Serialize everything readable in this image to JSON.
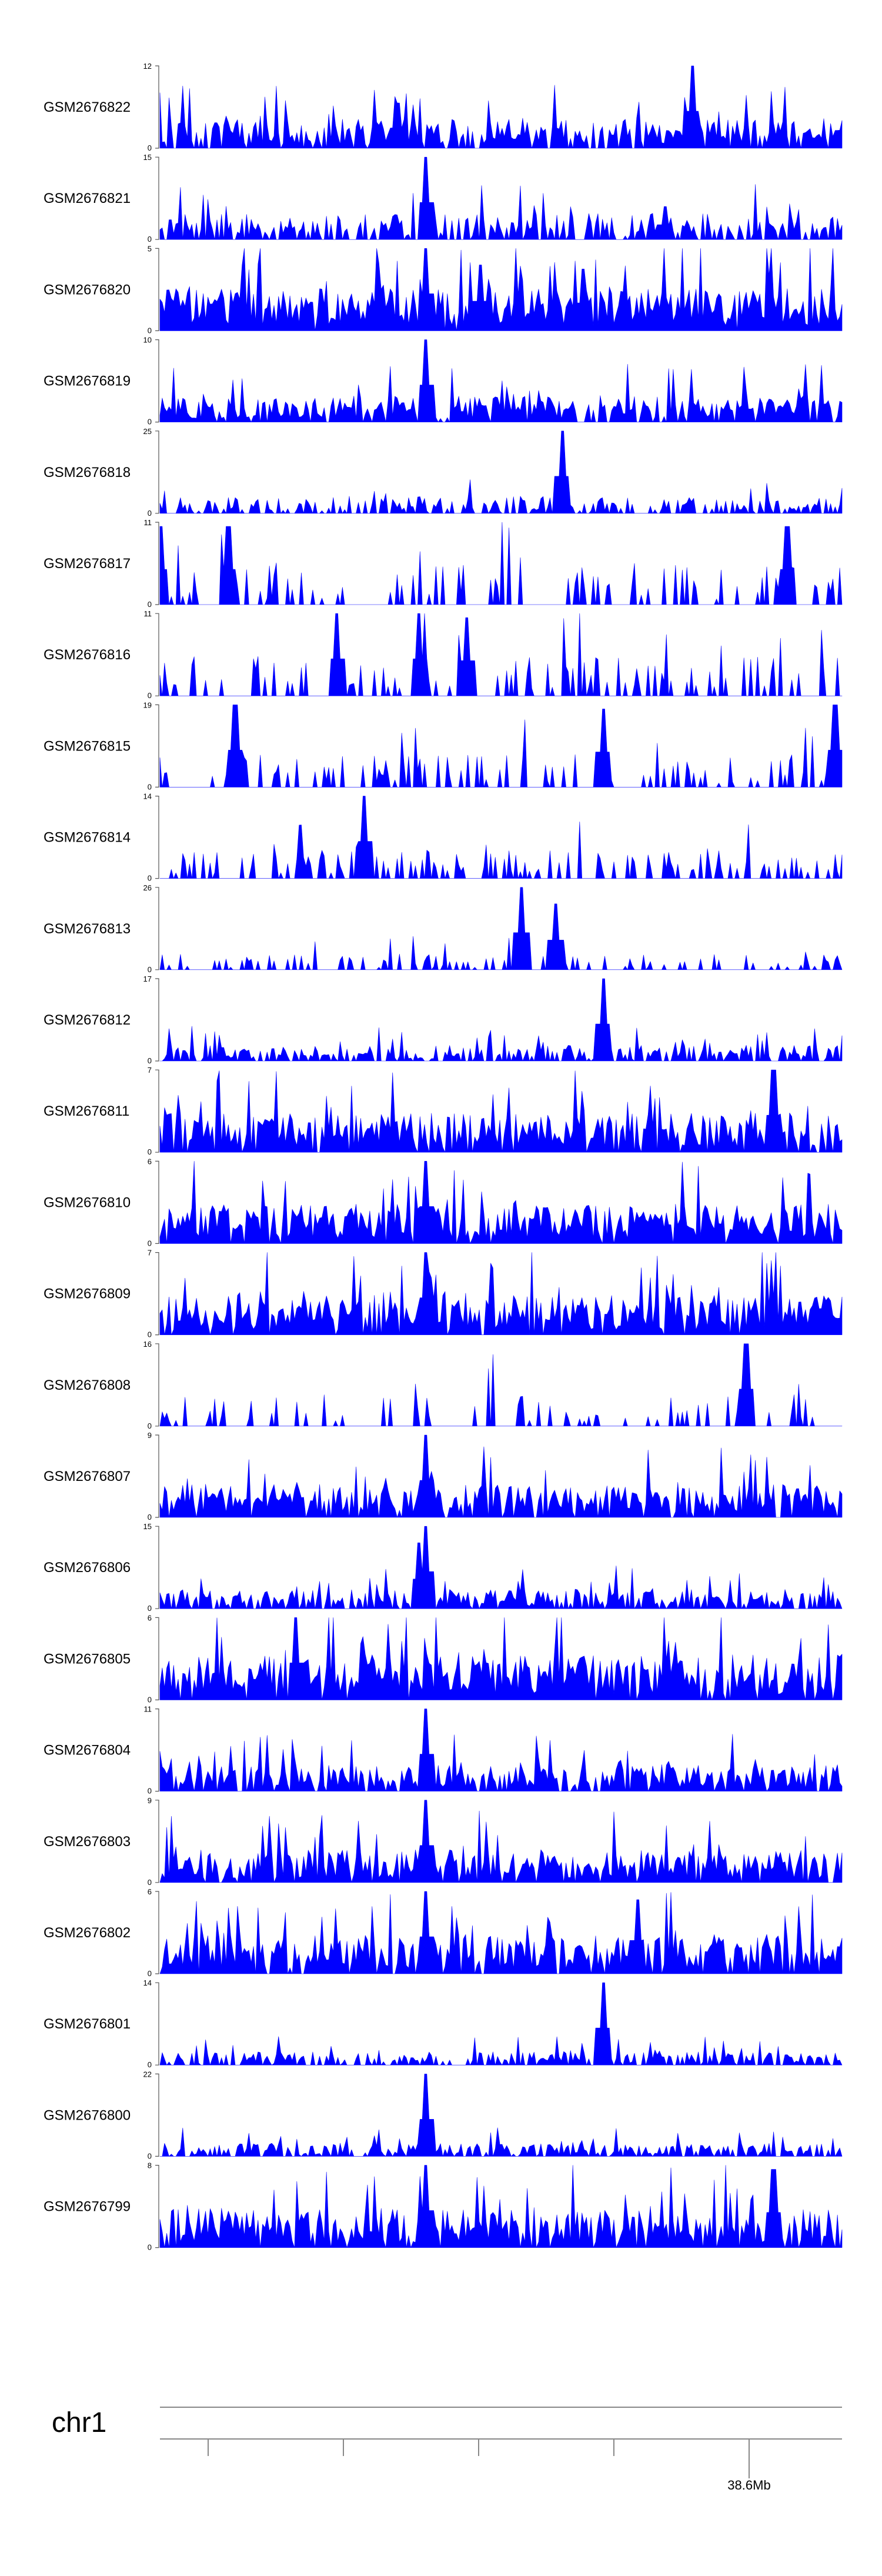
{
  "chart_data": {
    "type": "area",
    "color": "#0000ff",
    "chromosome": "chr1",
    "coordinate_label": "38.6Mb",
    "tracks": [
      {
        "name": "GSM2676822",
        "ymax": 12,
        "ymin": 0,
        "seed": 1,
        "sparsity": 0.15,
        "peakPos": [
          0.78,
          0.35
        ],
        "peakH": [
          1.0,
          0.55
        ],
        "base": 0.22
      },
      {
        "name": "GSM2676821",
        "ymax": 15,
        "ymin": 0,
        "seed": 2,
        "sparsity": 0.35,
        "peakPos": [
          0.39,
          0.74
        ],
        "peakH": [
          1.0,
          0.4
        ],
        "base": 0.2
      },
      {
        "name": "GSM2676820",
        "ymax": 5,
        "ymin": 0,
        "seed": 3,
        "sparsity": 0.05,
        "peakPos": [
          0.39,
          0.47,
          0.62
        ],
        "peakH": [
          1.0,
          0.8,
          0.75
        ],
        "base": 0.32
      },
      {
        "name": "GSM2676819",
        "ymax": 10,
        "ymin": 0,
        "seed": 4,
        "sparsity": 0.15,
        "peakPos": [
          0.39
        ],
        "peakH": [
          1.0
        ],
        "base": 0.2
      },
      {
        "name": "GSM2676818",
        "ymax": 25,
        "ymin": 0,
        "seed": 5,
        "sparsity": 0.45,
        "peakPos": [
          0.59
        ],
        "peakH": [
          1.0
        ],
        "base": 0.12
      },
      {
        "name": "GSM2676817",
        "ymax": 11,
        "ymin": 0,
        "seed": 6,
        "sparsity": 0.7,
        "peakPos": [
          0.0,
          0.1,
          0.92
        ],
        "peakH": [
          0.95,
          0.95,
          0.95
        ],
        "base": 0.3
      },
      {
        "name": "GSM2676816",
        "ymax": 11,
        "ymin": 0,
        "seed": 7,
        "sparsity": 0.7,
        "peakPos": [
          0.26,
          0.38,
          0.45
        ],
        "peakH": [
          1.0,
          1.0,
          0.95
        ],
        "base": 0.3
      },
      {
        "name": "GSM2676815",
        "ymax": 19,
        "ymin": 0,
        "seed": 8,
        "sparsity": 0.75,
        "peakPos": [
          0.11,
          0.65,
          0.99
        ],
        "peakH": [
          1.0,
          0.95,
          1.0
        ],
        "base": 0.25
      },
      {
        "name": "GSM2676814",
        "ymax": 14,
        "ymin": 0,
        "seed": 9,
        "sparsity": 0.65,
        "peakPos": [
          0.3
        ],
        "peakH": [
          1.0
        ],
        "base": 0.22
      },
      {
        "name": "GSM2676813",
        "ymax": 26,
        "ymin": 0,
        "seed": 10,
        "sparsity": 0.7,
        "peakPos": [
          0.53,
          0.58
        ],
        "peakH": [
          1.0,
          0.8
        ],
        "base": 0.12
      },
      {
        "name": "GSM2676812",
        "ymax": 17,
        "ymin": 0,
        "seed": 11,
        "sparsity": 0.35,
        "peakPos": [
          0.65
        ],
        "peakH": [
          1.0
        ],
        "base": 0.12
      },
      {
        "name": "GSM2676811",
        "ymax": 7,
        "ymin": 0,
        "seed": 12,
        "sparsity": 0.1,
        "peakPos": [
          0.9
        ],
        "peakH": [
          1.0
        ],
        "base": 0.3
      },
      {
        "name": "GSM2676810",
        "ymax": 6,
        "ymin": 0,
        "seed": 13,
        "sparsity": 0.1,
        "peakPos": [
          0.39
        ],
        "peakH": [
          1.0
        ],
        "base": 0.3
      },
      {
        "name": "GSM2676809",
        "ymax": 7,
        "ymin": 0,
        "seed": 14,
        "sparsity": 0.1,
        "peakPos": [
          0.39
        ],
        "peakH": [
          1.0
        ],
        "base": 0.3
      },
      {
        "name": "GSM2676808",
        "ymax": 16,
        "ymin": 0,
        "seed": 15,
        "sparsity": 0.75,
        "peakPos": [
          0.86
        ],
        "peakH": [
          1.0
        ],
        "base": 0.25
      },
      {
        "name": "GSM2676807",
        "ymax": 9,
        "ymin": 0,
        "seed": 16,
        "sparsity": 0.1,
        "peakPos": [
          0.39
        ],
        "peakH": [
          1.0
        ],
        "base": 0.25
      },
      {
        "name": "GSM2676806",
        "ymax": 15,
        "ymin": 0,
        "seed": 17,
        "sparsity": 0.25,
        "peakPos": [
          0.39,
          0.38
        ],
        "peakH": [
          1.0,
          0.8
        ],
        "base": 0.15
      },
      {
        "name": "GSM2676805",
        "ymax": 6,
        "ymin": 0,
        "seed": 18,
        "sparsity": 0.05,
        "peakPos": [
          0.2
        ],
        "peakH": [
          1.0
        ],
        "base": 0.35
      },
      {
        "name": "GSM2676804",
        "ymax": 11,
        "ymin": 0,
        "seed": 19,
        "sparsity": 0.15,
        "peakPos": [
          0.39
        ],
        "peakH": [
          1.0
        ],
        "base": 0.2
      },
      {
        "name": "GSM2676803",
        "ymax": 9,
        "ymin": 0,
        "seed": 20,
        "sparsity": 0.1,
        "peakPos": [
          0.39
        ],
        "peakH": [
          1.0
        ],
        "base": 0.25
      },
      {
        "name": "GSM2676802",
        "ymax": 6,
        "ymin": 0,
        "seed": 21,
        "sparsity": 0.1,
        "peakPos": [
          0.39,
          0.7
        ],
        "peakH": [
          1.0,
          0.9
        ],
        "base": 0.3
      },
      {
        "name": "GSM2676801",
        "ymax": 14,
        "ymin": 0,
        "seed": 22,
        "sparsity": 0.35,
        "peakPos": [
          0.65
        ],
        "peakH": [
          1.0
        ],
        "base": 0.1
      },
      {
        "name": "GSM2676800",
        "ymax": 22,
        "ymin": 0,
        "seed": 23,
        "sparsity": 0.3,
        "peakPos": [
          0.39
        ],
        "peakH": [
          1.0
        ],
        "base": 0.1
      },
      {
        "name": "GSM2676799",
        "ymax": 8,
        "ymin": 0,
        "seed": 24,
        "sparsity": 0.1,
        "peakPos": [
          0.39,
          0.9
        ],
        "peakH": [
          1.0,
          0.95
        ],
        "base": 0.3
      }
    ]
  }
}
